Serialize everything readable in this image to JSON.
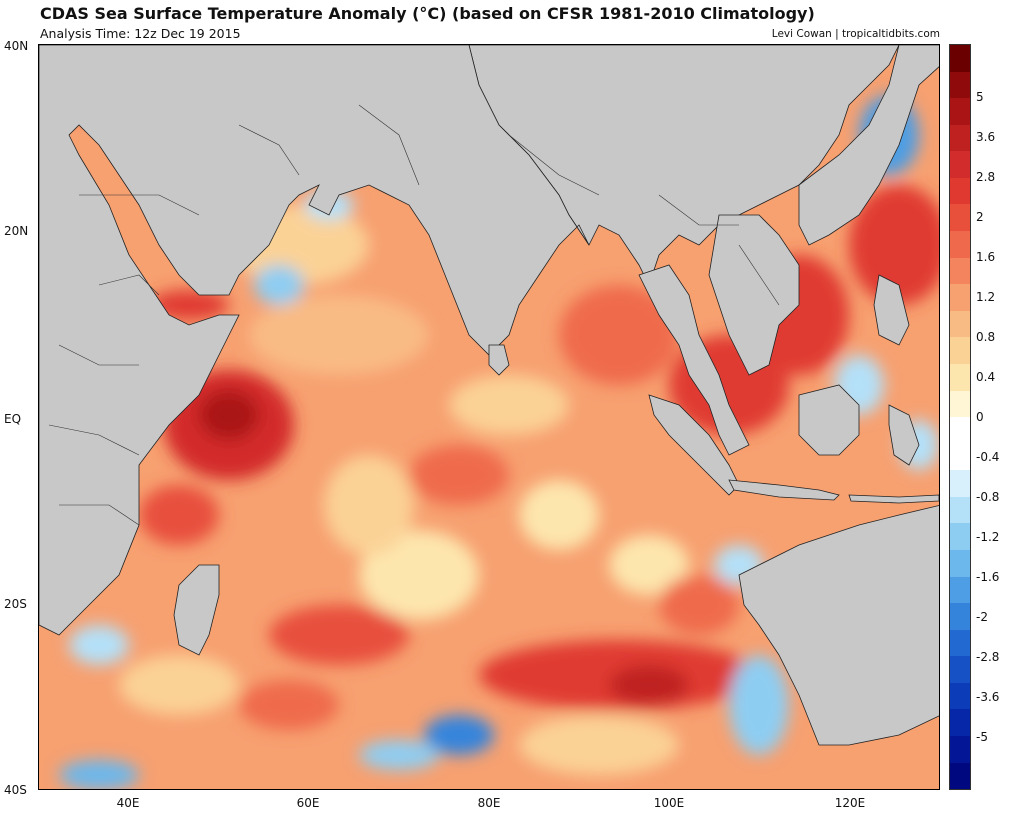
{
  "title": "CDAS Sea Surface Temperature Anomaly (°C) (based on CFSR 1981-2010 Climatology)",
  "subtitle": "Analysis Time: 12z Dec 19 2015",
  "credit": "Levi Cowan | tropicaltidbits.com",
  "lat_labels": [
    "40N",
    "20N",
    "EQ",
    "20S",
    "40S"
  ],
  "lon_labels": [
    "40E",
    "60E",
    "80E",
    "100E",
    "120E"
  ],
  "colorbar": {
    "labels": [
      "5",
      "3.6",
      "2.8",
      "2",
      "1.6",
      "1.2",
      "0.8",
      "0.4",
      "0",
      "-0.4",
      "-0.8",
      "-1.2",
      "-1.6",
      "-2",
      "-2.8",
      "-3.6",
      "-5"
    ],
    "colors": [
      "#6b0000",
      "#8f0b0b",
      "#aa1414",
      "#bf2020",
      "#d32c2c",
      "#e03a30",
      "#e8503c",
      "#ef6a4c",
      "#f4845e",
      "#f7a070",
      "#f9bb84",
      "#fbd296",
      "#fde6ad",
      "#fff6d5",
      "#ffffff",
      "#ffffff",
      "#d8f0fc",
      "#b4e0f8",
      "#8ecdf2",
      "#6cb7ec",
      "#4d9ee4",
      "#3584dc",
      "#226ad2",
      "#1652c6",
      "#0c3cb8",
      "#0628a8",
      "#021696",
      "#000880"
    ]
  },
  "map": {
    "land_color": "#c8c8c8",
    "ocean_base_color": "#f7a070",
    "region": "Indian Ocean, 30E-130E, 40S-40N"
  }
}
